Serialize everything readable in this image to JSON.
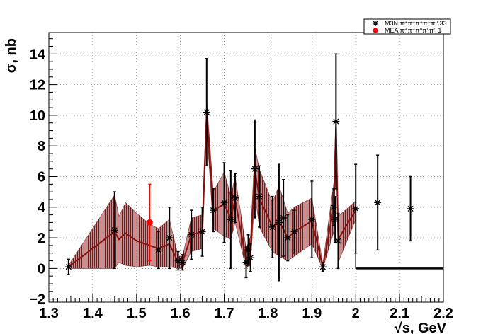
{
  "chart_data": {
    "type": "scatter",
    "title": "",
    "xlabel": "√s, GeV",
    "ylabel": "σ, nb",
    "xlim": [
      1.3,
      2.2
    ],
    "ylim": [
      -2.2,
      15.4
    ],
    "grid": true,
    "legend_position": "top-right",
    "x_ticks": [
      1.3,
      1.4,
      1.5,
      1.6,
      1.7,
      1.8,
      1.9,
      2.0,
      2.1,
      2.2
    ],
    "x_tick_labels": [
      "1.3",
      "1.4",
      "1.5",
      "1.6",
      "1.7",
      "1.8",
      "1.9",
      "2",
      "2.1",
      "2.2"
    ],
    "y_ticks": [
      -2,
      0,
      2,
      4,
      6,
      8,
      10,
      12,
      14
    ],
    "y_tick_labels": [
      "−2",
      "0",
      "2",
      "4",
      "6",
      "8",
      "10",
      "12",
      "14"
    ],
    "colors": {
      "band": "#7a1a1a",
      "band_fill": "#8b3a3a",
      "mean_line": "#8b1010",
      "mea": "#ff0000",
      "m3n": "#000000",
      "grid": "#808080"
    },
    "series": [
      {
        "name": "M3N π⁺π⁻π⁺π⁻π⁰ 33",
        "legend_label": "M3N π⁺π⁻π⁺π⁻π⁰ 33",
        "marker": "star",
        "color": "#000000",
        "points": [
          {
            "x": 1.345,
            "y": 0.1,
            "err": 0.5
          },
          {
            "x": 1.45,
            "y": 2.5,
            "err": 2.5
          },
          {
            "x": 1.55,
            "y": 1.2,
            "err": 1.2
          },
          {
            "x": 1.575,
            "y": 2.0,
            "err": 2.0
          },
          {
            "x": 1.595,
            "y": 0.5,
            "err": 0.6
          },
          {
            "x": 1.605,
            "y": 0.4,
            "err": 0.5
          },
          {
            "x": 1.625,
            "y": 2.2,
            "err": 1.6
          },
          {
            "x": 1.65,
            "y": 2.4,
            "err": 1.6
          },
          {
            "x": 1.66,
            "y": 10.2,
            "err": 3.5
          },
          {
            "x": 1.675,
            "y": 3.8,
            "err": 1.4
          },
          {
            "x": 1.7,
            "y": 4.3,
            "err": 2.6
          },
          {
            "x": 1.715,
            "y": 3.2,
            "err": 3.2
          },
          {
            "x": 1.725,
            "y": 4.6,
            "err": 1.6
          },
          {
            "x": 1.75,
            "y": 0.4,
            "err": 1.0
          },
          {
            "x": 1.755,
            "y": 1.2,
            "err": 1.0
          },
          {
            "x": 1.76,
            "y": 0.7,
            "err": 0.9
          },
          {
            "x": 1.77,
            "y": 6.5,
            "err": 3.2
          },
          {
            "x": 1.78,
            "y": 4.7,
            "err": 2.0
          },
          {
            "x": 1.81,
            "y": 2.7,
            "err": 2.0
          },
          {
            "x": 1.825,
            "y": 3.0,
            "err": 3.8
          },
          {
            "x": 1.835,
            "y": 3.3,
            "err": 2.5
          },
          {
            "x": 1.845,
            "y": 2.0,
            "err": 1.5
          },
          {
            "x": 1.86,
            "y": 2.4,
            "err": 1.4
          },
          {
            "x": 1.9,
            "y": 3.2,
            "err": 2.5
          },
          {
            "x": 1.925,
            "y": 0.1,
            "err": 0.3
          },
          {
            "x": 1.95,
            "y": 4.0,
            "err": 1.2
          },
          {
            "x": 1.953,
            "y": 3.2,
            "err": 1.5
          },
          {
            "x": 1.955,
            "y": 9.6,
            "err": 4.4
          },
          {
            "x": 1.96,
            "y": 1.8,
            "err": 1.8
          },
          {
            "x": 2.0,
            "y": 3.9,
            "err": 2.9
          },
          {
            "x": 2.05,
            "y": 4.3,
            "err": 3.1
          },
          {
            "x": 2.125,
            "y": 3.9,
            "err": 2.1
          }
        ]
      },
      {
        "name": "MEA π⁺π⁻π⁰π⁰π⁰ 1",
        "legend_label": "MEA π⁺π⁻π⁰π⁰π⁰ 1",
        "marker": "circle",
        "color": "#ff0000",
        "points": [
          {
            "x": 1.53,
            "y": 3.0,
            "err": 2.5
          }
        ]
      }
    ],
    "band": {
      "x": [
        1.345,
        1.45,
        1.46,
        1.475,
        1.5,
        1.53,
        1.55,
        1.575,
        1.595,
        1.605,
        1.625,
        1.65,
        1.66,
        1.675,
        1.7,
        1.715,
        1.725,
        1.75,
        1.76,
        1.77,
        1.78,
        1.81,
        1.825,
        1.845,
        1.86,
        1.9,
        1.925,
        1.95,
        1.955,
        1.96,
        2.0
      ],
      "mean": [
        0.1,
        2.4,
        1.9,
        2.3,
        1.8,
        1.5,
        1.3,
        1.6,
        0.4,
        0.4,
        2.2,
        2.4,
        10.1,
        3.8,
        4.2,
        3.3,
        4.5,
        0.5,
        1.2,
        6.4,
        4.6,
        2.7,
        3.1,
        2.0,
        2.4,
        3.1,
        0.1,
        4.0,
        9.5,
        1.9,
        3.8
      ],
      "upper": [
        0.2,
        4.8,
        3.4,
        4.3,
        3.6,
        2.9,
        2.6,
        3.2,
        0.8,
        0.8,
        3.3,
        3.5,
        11.0,
        5.0,
        6.3,
        4.7,
        6.0,
        1.3,
        2.1,
        7.9,
        6.5,
        4.3,
        5.4,
        3.6,
        4.0,
        4.6,
        0.3,
        5.6,
        10.2,
        3.4,
        4.4
      ],
      "lower": [
        0.0,
        0.0,
        0.4,
        0.2,
        0.1,
        0.2,
        0.1,
        0.1,
        0.0,
        0.0,
        1.1,
        1.3,
        9.2,
        2.6,
        2.1,
        1.9,
        3.0,
        0.0,
        0.3,
        4.9,
        2.7,
        1.1,
        0.8,
        0.5,
        0.8,
        1.6,
        0.0,
        2.4,
        8.8,
        0.4,
        3.2
      ]
    },
    "step_line": {
      "x": [
        2.0,
        2.2
      ],
      "y": [
        0.0,
        0.0
      ]
    }
  }
}
